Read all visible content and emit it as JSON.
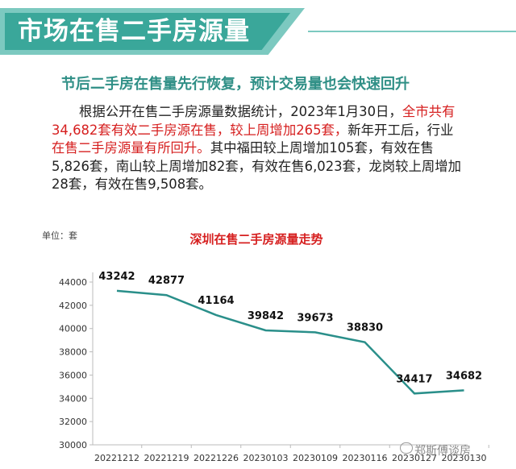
{
  "header": {
    "title": "市场在售二手房源量"
  },
  "subtitle": "节后二手房在售量先行恢复，预计交易量也会快速回升",
  "paragraph": {
    "l1_black": "根据公开在售二手房源量数据统计，2023年1月30日，",
    "l1_red": "全市共有",
    "l2_red": "34,682套有效二手房源在售，较上周增加265套，",
    "l2_black": "新年开工后，行业",
    "l3_red": "在售二手房源量有所回升。",
    "l3_black": "其中福田较上周增加105套，有效在售",
    "l4": "5,826套，南山较上周增加82套，有效在售6,023套，龙岗较上周增加",
    "l5": "28套，有效在售9,508套。"
  },
  "watermark": "郑斯傅谈房",
  "colors": {
    "teal": "#3aa79a",
    "teal_light": "#7cc9c0",
    "red": "#d62020",
    "line": "#2a8f8a"
  },
  "chart_data": {
    "type": "line",
    "title": "深圳在售二手房源量走势",
    "unit_label": "单位：套",
    "x": [
      "20221212",
      "20221219",
      "20221226",
      "20230103",
      "20230109",
      "20230116",
      "20230127",
      "20230130"
    ],
    "series": [
      {
        "values": [
          43242,
          42877,
          41164,
          39842,
          39673,
          38830,
          34417,
          34682
        ]
      }
    ],
    "ylim": [
      30000,
      44000
    ],
    "yticks": [
      30000,
      32000,
      34000,
      36000,
      38000,
      40000,
      42000,
      44000
    ],
    "grid": false,
    "legend": "none"
  }
}
